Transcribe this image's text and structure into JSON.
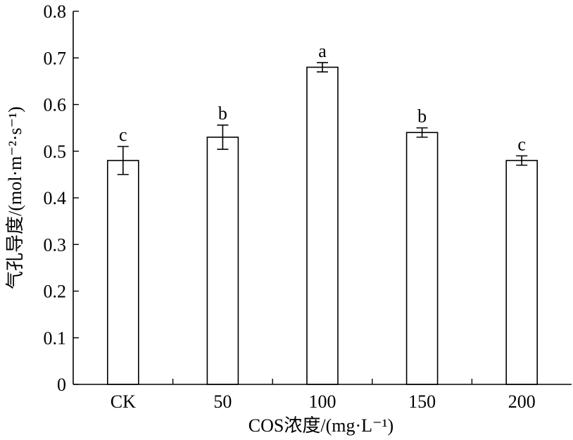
{
  "chart_data": {
    "type": "bar",
    "categories": [
      "CK",
      "50",
      "100",
      "150",
      "200"
    ],
    "values": [
      0.48,
      0.53,
      0.68,
      0.54,
      0.48
    ],
    "errors": [
      0.03,
      0.026,
      0.01,
      0.01,
      0.01
    ],
    "significance": [
      "c",
      "b",
      "a",
      "b",
      "c"
    ],
    "xlabel": "COS浓度/(mg·L⁻¹)",
    "ylabel": "气孔导度/(mol·m⁻²·s⁻¹)",
    "ylim": [
      0,
      0.8
    ],
    "yticks": [
      "0",
      "0.1",
      "0.2",
      "0.3",
      "0.4",
      "0.5",
      "0.6",
      "0.7",
      "0.8"
    ],
    "grid": false,
    "colors": {
      "bar_fill": "#ffffff",
      "stroke": "#000000"
    }
  }
}
